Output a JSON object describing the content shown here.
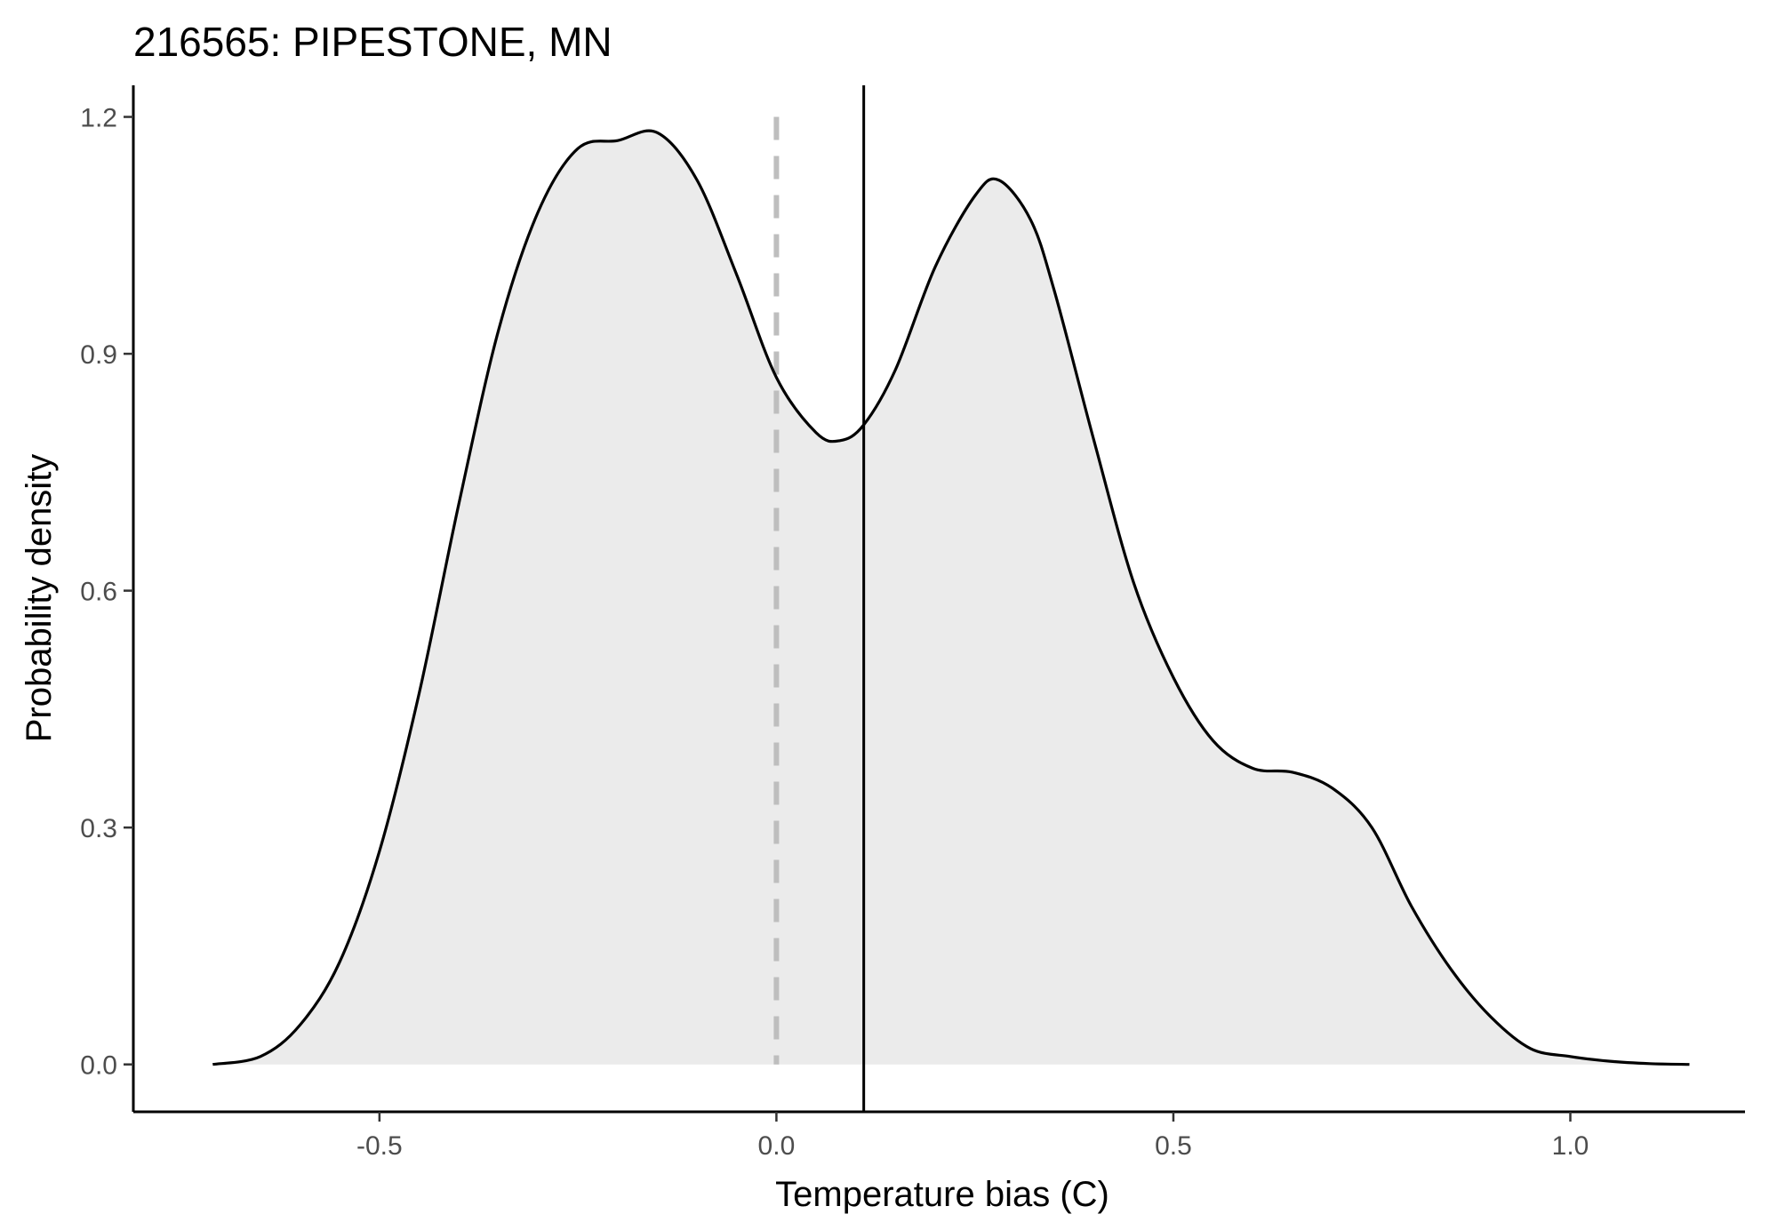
{
  "chart_data": {
    "type": "area",
    "title": "216565: PIPESTONE, MN",
    "xlabel": "Temperature bias (C)",
    "ylabel": "Probability density",
    "xlim": [
      -0.81,
      1.22
    ],
    "ylim": [
      -0.06,
      1.24
    ],
    "x_ticks": [
      -0.5,
      0.0,
      0.5,
      1.0
    ],
    "x_tick_labels": [
      "-0.5",
      "0.0",
      "0.5",
      "1.0"
    ],
    "y_ticks": [
      0.0,
      0.3,
      0.6,
      0.9,
      1.2
    ],
    "y_tick_labels": [
      "0.0",
      "0.3",
      "0.6",
      "0.9",
      "1.2"
    ],
    "grid": false,
    "series": [
      {
        "x": [
          -0.71,
          -0.65,
          -0.6,
          -0.55,
          -0.5,
          -0.45,
          -0.4,
          -0.35,
          -0.3,
          -0.25,
          -0.2,
          -0.15,
          -0.1,
          -0.05,
          0.0,
          0.05,
          0.08,
          0.11,
          0.15,
          0.2,
          0.25,
          0.28,
          0.32,
          0.35,
          0.4,
          0.45,
          0.5,
          0.55,
          0.6,
          0.65,
          0.7,
          0.75,
          0.8,
          0.85,
          0.9,
          0.95,
          1.0,
          1.05,
          1.1,
          1.15
        ],
        "values": [
          0.0,
          0.01,
          0.05,
          0.13,
          0.27,
          0.47,
          0.71,
          0.93,
          1.08,
          1.16,
          1.17,
          1.18,
          1.12,
          1.0,
          0.87,
          0.8,
          0.79,
          0.81,
          0.88,
          1.01,
          1.1,
          1.12,
          1.07,
          0.98,
          0.79,
          0.61,
          0.49,
          0.41,
          0.375,
          0.37,
          0.35,
          0.3,
          0.2,
          0.12,
          0.06,
          0.02,
          0.01,
          0.004,
          0.001,
          0.0
        ]
      }
    ],
    "reference_lines": [
      {
        "x": 0.0,
        "style": "dashed",
        "color": "#bebebe"
      },
      {
        "x": 0.11,
        "style": "solid",
        "color": "#000000"
      }
    ],
    "fill_color": "#ebebeb",
    "line_color": "#000000"
  }
}
